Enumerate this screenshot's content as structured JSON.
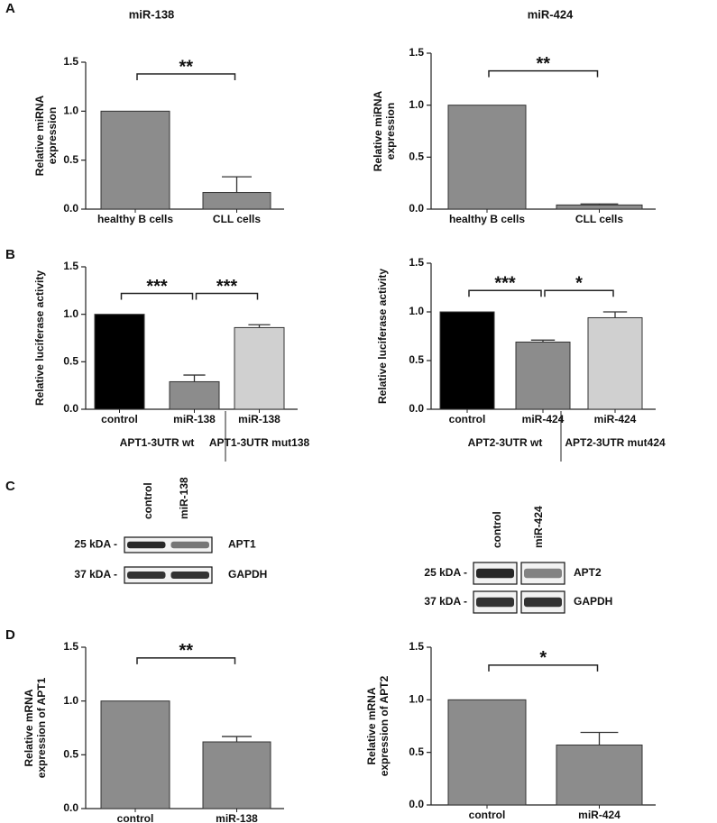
{
  "panel_labels": [
    "A",
    "B",
    "C",
    "D"
  ],
  "chart_data": [
    {
      "type": "bar",
      "title": "miR-138",
      "ylabel": [
        "Relative miRNA",
        "expression"
      ],
      "categories": [
        "healthy B cells",
        "CLL cells"
      ],
      "values": [
        1.0,
        0.17
      ],
      "errors": [
        null,
        0.16
      ],
      "color": "#8c8c8c",
      "ylim": [
        0,
        1.5
      ],
      "yticks": [
        {
          "value": 0,
          "label": "0.0"
        },
        {
          "value": 0.5,
          "label": "0.5"
        },
        {
          "value": 1.0,
          "label": "1.0"
        },
        {
          "value": 1.5,
          "label": "1.5"
        }
      ],
      "annotations": [
        {
          "text": "**",
          "from": 0,
          "to": 1,
          "y": 1.38
        }
      ]
    },
    {
      "type": "bar",
      "title": "miR-424",
      "ylabel": [
        "Relative miRNA",
        "expression"
      ],
      "categories": [
        "healthy B cells",
        "CLL cells"
      ],
      "values": [
        1.0,
        0.04
      ],
      "errors": [
        null,
        0.01
      ],
      "color": "#8c8c8c",
      "ylim": [
        0,
        1.5
      ],
      "yticks": [
        {
          "value": 0,
          "label": "0.0"
        },
        {
          "value": 0.5,
          "label": "0.5"
        },
        {
          "value": 1.0,
          "label": "1.0"
        },
        {
          "value": 1.5,
          "label": "1.5"
        }
      ],
      "annotations": [
        {
          "text": "**",
          "from": 0,
          "to": 1,
          "y": 1.33
        }
      ]
    },
    {
      "type": "bar",
      "ylabel": [
        "Relative luciferase activity"
      ],
      "categories": [
        "control",
        "miR-138",
        "miR-138"
      ],
      "values": [
        1.0,
        0.29,
        0.86
      ],
      "errors": [
        null,
        0.07,
        0.03
      ],
      "colors": [
        "#000000",
        "#8c8c8c",
        "#d0d0d0"
      ],
      "ylim": [
        0,
        1.5
      ],
      "yticks": [
        {
          "value": 0,
          "label": "0.0"
        },
        {
          "value": 0.5,
          "label": "0.5"
        },
        {
          "value": 1.0,
          "label": "1.0"
        },
        {
          "value": 1.5,
          "label": "1.5"
        }
      ],
      "groups": [
        {
          "label": "APT1-3UTR wt",
          "from": 0,
          "to": 1
        },
        {
          "label": "APT1-3UTR mut138",
          "from": 2,
          "to": 2
        }
      ],
      "annotations": [
        {
          "text": "***",
          "from": 0,
          "to": 1,
          "y": 1.22
        },
        {
          "text": "***",
          "from": 1,
          "to": 2,
          "y": 1.22
        }
      ]
    },
    {
      "type": "bar",
      "ylabel": [
        "Relative luciferase activity"
      ],
      "categories": [
        "control",
        "miR-424",
        "miR-424"
      ],
      "values": [
        1.0,
        0.69,
        0.94
      ],
      "errors": [
        null,
        0.02,
        0.06
      ],
      "colors": [
        "#000000",
        "#8c8c8c",
        "#d0d0d0"
      ],
      "ylim": [
        0,
        1.5
      ],
      "yticks": [
        {
          "value": 0,
          "label": "0.0"
        },
        {
          "value": 0.5,
          "label": "0.5"
        },
        {
          "value": 1.0,
          "label": "1.0"
        },
        {
          "value": 1.5,
          "label": "1.5"
        }
      ],
      "groups": [
        {
          "label": "APT2-3UTR wt",
          "from": 0,
          "to": 1
        },
        {
          "label": "APT2-3UTR mut424",
          "from": 2,
          "to": 2
        }
      ],
      "annotations": [
        {
          "text": "***",
          "from": 0,
          "to": 1,
          "y": 1.22
        },
        {
          "text": "*",
          "from": 1,
          "to": 2,
          "y": 1.22
        }
      ]
    },
    {
      "type": "bar",
      "ylabel": [
        "Relative mRNA",
        "expression of APT1"
      ],
      "categories": [
        "control",
        "miR-138"
      ],
      "values": [
        1.0,
        0.62
      ],
      "errors": [
        null,
        0.05
      ],
      "color": "#8c8c8c",
      "ylim": [
        0,
        1.5
      ],
      "yticks": [
        {
          "value": 0,
          "label": "0.0"
        },
        {
          "value": 0.5,
          "label": "0.5"
        },
        {
          "value": 1.0,
          "label": "1.0"
        },
        {
          "value": 1.5,
          "label": "1.5"
        }
      ],
      "annotations": [
        {
          "text": "**",
          "from": 0,
          "to": 1,
          "y": 1.4
        }
      ]
    },
    {
      "type": "bar",
      "ylabel": [
        "Relative mRNA",
        "expression of APT2"
      ],
      "categories": [
        "control",
        "miR-424"
      ],
      "values": [
        1.0,
        0.57
      ],
      "errors": [
        null,
        0.12
      ],
      "color": "#8c8c8c",
      "ylim": [
        0,
        1.5
      ],
      "yticks": [
        {
          "value": 0,
          "label": "0.0"
        },
        {
          "value": 0.5,
          "label": "0.5"
        },
        {
          "value": 1.0,
          "label": "1.0"
        },
        {
          "value": 1.5,
          "label": "1.5"
        }
      ],
      "annotations": [
        {
          "text": "*",
          "from": 0,
          "to": 1,
          "y": 1.33
        }
      ]
    }
  ],
  "blots": [
    {
      "lanes": [
        "control",
        "miR-138"
      ],
      "rows": [
        {
          "size": "25 kDA -",
          "protein": "APT1"
        },
        {
          "size": "37 kDA -",
          "protein": "GAPDH"
        }
      ]
    },
    {
      "lanes": [
        "control",
        "miR-424"
      ],
      "rows": [
        {
          "size": "25 kDA -",
          "protein": "APT2"
        },
        {
          "size": "37 kDA -",
          "protein": "GAPDH"
        }
      ]
    }
  ]
}
